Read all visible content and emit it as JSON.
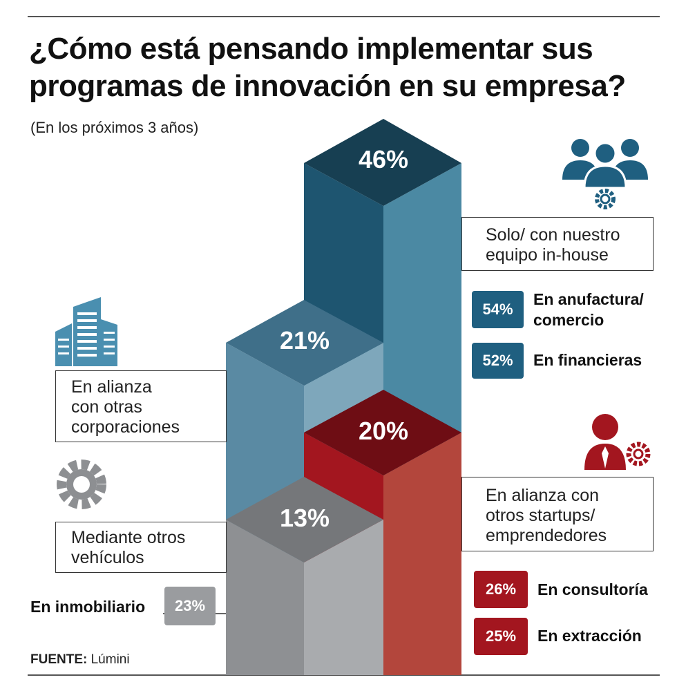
{
  "header": {
    "title": "¿Cómo está pensando implementar sus programas de innovación en su empresa?",
    "subtitle": "(En los próximos 3 años)"
  },
  "chart_data": {
    "type": "bar",
    "style": "isometric stacked columns",
    "title": "¿Cómo está pensando implementar sus programas de innovación en su empresa?",
    "subtitle": "(En los próximos 3 años)",
    "series": [
      {
        "name": "Solo/ con nuestro equipo in-house",
        "value": 46,
        "value_label": "46%",
        "color": "#1f4e63",
        "breakdown": [
          {
            "label": "En anufactura/ comercio",
            "value": 54,
            "value_label": "54%"
          },
          {
            "label": "En financieras",
            "value": 52,
            "value_label": "52%"
          }
        ]
      },
      {
        "name": "En alianza con otras corporaciones",
        "value": 21,
        "value_label": "21%",
        "color": "#5a87a0",
        "breakdown": []
      },
      {
        "name": "En alianza con otros startups/ emprendedores",
        "value": 20,
        "value_label": "20%",
        "color": "#a3161f",
        "breakdown": [
          {
            "label": "En consultoría",
            "value": 26,
            "value_label": "26%"
          },
          {
            "label": "En extracción",
            "value": 25,
            "value_label": "25%"
          }
        ]
      },
      {
        "name": "Mediante otros vehículos",
        "value": 13,
        "value_label": "13%",
        "color": "#8d8f92",
        "breakdown": [
          {
            "label": "En inmobiliario",
            "value": 23,
            "value_label": "23%"
          }
        ]
      }
    ]
  },
  "labels": {
    "inhouse_line1": "Solo/ con nuestro",
    "inhouse_line2": "equipo in-house",
    "corp_line1": "En alianza",
    "corp_line2": "con otras",
    "corp_line3": "corporaciones",
    "startups_line1": "En alianza con",
    "startups_line2": "otros startups/",
    "startups_line3": "emprendedores",
    "otros_line1": "Mediante otros",
    "otros_line2": "vehículos",
    "manufactura_line1": "En anufactura/",
    "manufactura_line2": "comercio"
  },
  "source": {
    "label": "FUENTE:",
    "value": "Lúmini"
  },
  "icons": [
    "people-gear-icon",
    "buildings-icon",
    "gear-icon",
    "person-gear-icon"
  ],
  "colors": {
    "navy": "#1f4e63",
    "teal": "#3c7a93",
    "blue_light": "#5a87a0",
    "red": "#a3161f",
    "red_light": "#b2443a",
    "grey": "#8d8f92"
  }
}
